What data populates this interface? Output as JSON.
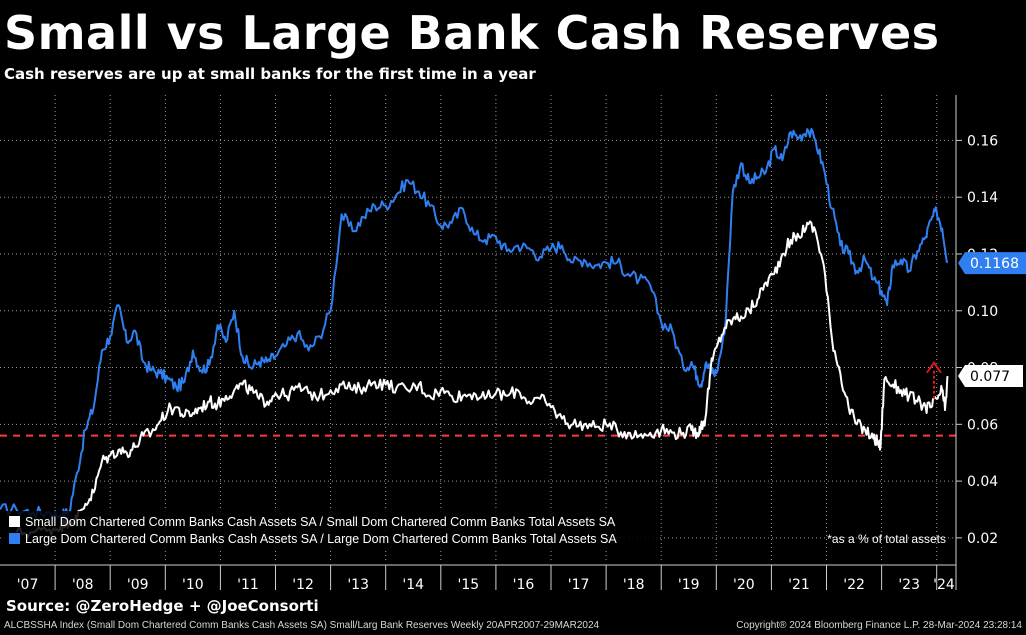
{
  "header": {
    "title": "Small vs Large Bank Cash Reserves",
    "subtitle": "Cash reserves are up at small banks for the first time in a year"
  },
  "chart_data": {
    "type": "line",
    "title": "Small vs Large Bank Cash Reserves",
    "subtitle": "Cash reserves are up at small banks for the first time in a year",
    "x_ticks": [
      "'07",
      "'08",
      "'09",
      "'10",
      "'11",
      "'12",
      "'13",
      "'14",
      "'15",
      "'16",
      "'17",
      "'18",
      "'19",
      "'20",
      "'21",
      "'22",
      "'23",
      "'24"
    ],
    "xlim": [
      2007.0,
      2024.35
    ],
    "y_ticks": [
      "0.02",
      "0.04",
      "0.06",
      "0.08",
      "0.10",
      "0.12",
      "0.14",
      "0.16"
    ],
    "ylim": [
      0.0115,
      0.176
    ],
    "grid": true,
    "legend_placement": "bottom-left",
    "note": "*as a % of total assets",
    "reference_line": {
      "value": 0.056,
      "color": "#ff3b3b",
      "style": "dashed"
    },
    "arrow_annotation": {
      "x": 2023.95,
      "y_from": 0.069,
      "y_to": 0.081,
      "color": "#d81b1b"
    },
    "series": [
      {
        "name": "Large Dom Chartered Comm Banks Cash Assets SA / Large Dom Chartered Comm Banks Total Assets SA",
        "color": "#2f7ff0",
        "last_value_label": "0.1168",
        "last_value": 0.1168,
        "x": [
          2007.0,
          2007.3,
          2007.6,
          2007.9,
          2008.1,
          2008.25,
          2008.4,
          2008.55,
          2008.7,
          2008.85,
          2009.0,
          2009.15,
          2009.3,
          2009.45,
          2009.6,
          2009.75,
          2009.9,
          2010.05,
          2010.2,
          2010.35,
          2010.5,
          2010.65,
          2010.8,
          2010.95,
          2011.1,
          2011.25,
          2011.4,
          2011.55,
          2011.7,
          2011.85,
          2012.0,
          2012.2,
          2012.4,
          2012.6,
          2012.8,
          2013.0,
          2013.2,
          2013.4,
          2013.6,
          2013.8,
          2014.0,
          2014.2,
          2014.4,
          2014.6,
          2014.8,
          2015.0,
          2015.2,
          2015.4,
          2015.6,
          2015.8,
          2016.0,
          2016.2,
          2016.4,
          2016.6,
          2016.8,
          2017.0,
          2017.2,
          2017.4,
          2017.6,
          2017.8,
          2018.0,
          2018.2,
          2018.4,
          2018.6,
          2018.8,
          2019.0,
          2019.2,
          2019.4,
          2019.55,
          2019.65,
          2019.72,
          2019.8,
          2019.9,
          2020.0,
          2020.15,
          2020.3,
          2020.45,
          2020.6,
          2020.75,
          2020.9,
          2021.05,
          2021.2,
          2021.35,
          2021.5,
          2021.65,
          2021.8,
          2021.95,
          2022.1,
          2022.25,
          2022.4,
          2022.55,
          2022.7,
          2022.85,
          2023.0,
          2023.1,
          2023.2,
          2023.35,
          2023.5,
          2023.65,
          2023.8,
          2023.9,
          2024.0,
          2024.1,
          2024.2
        ],
        "y": [
          0.03,
          0.03,
          0.029,
          0.029,
          0.028,
          0.029,
          0.043,
          0.058,
          0.066,
          0.086,
          0.091,
          0.102,
          0.089,
          0.093,
          0.082,
          0.079,
          0.078,
          0.076,
          0.073,
          0.075,
          0.086,
          0.079,
          0.081,
          0.095,
          0.089,
          0.1,
          0.084,
          0.08,
          0.082,
          0.082,
          0.084,
          0.088,
          0.092,
          0.086,
          0.091,
          0.1,
          0.134,
          0.128,
          0.133,
          0.137,
          0.137,
          0.141,
          0.146,
          0.142,
          0.137,
          0.13,
          0.131,
          0.136,
          0.127,
          0.125,
          0.126,
          0.121,
          0.123,
          0.122,
          0.119,
          0.122,
          0.123,
          0.117,
          0.118,
          0.116,
          0.117,
          0.117,
          0.113,
          0.111,
          0.109,
          0.096,
          0.093,
          0.08,
          0.082,
          0.077,
          0.074,
          0.081,
          0.079,
          0.078,
          0.092,
          0.142,
          0.152,
          0.145,
          0.147,
          0.149,
          0.157,
          0.153,
          0.163,
          0.161,
          0.164,
          0.16,
          0.15,
          0.136,
          0.123,
          0.12,
          0.114,
          0.118,
          0.111,
          0.107,
          0.102,
          0.116,
          0.118,
          0.114,
          0.121,
          0.126,
          0.132,
          0.135,
          0.129,
          0.117
        ]
      },
      {
        "name": "Small Dom Chartered Comm Banks Cash Assets SA / Small Dom Chartered Comm Banks Total Assets SA",
        "color": "#ffffff",
        "last_value_label": "0.077",
        "last_value": 0.077,
        "x": [
          2007.3,
          2007.6,
          2007.9,
          2008.1,
          2008.25,
          2008.4,
          2008.55,
          2008.7,
          2008.85,
          2009.0,
          2009.15,
          2009.3,
          2009.45,
          2009.6,
          2009.75,
          2009.9,
          2010.05,
          2010.2,
          2010.35,
          2010.5,
          2010.65,
          2010.8,
          2010.95,
          2011.1,
          2011.25,
          2011.4,
          2011.55,
          2011.7,
          2011.85,
          2012.0,
          2012.2,
          2012.4,
          2012.6,
          2012.8,
          2013.0,
          2013.2,
          2013.4,
          2013.6,
          2013.8,
          2014.0,
          2014.2,
          2014.4,
          2014.6,
          2014.8,
          2015.0,
          2015.2,
          2015.4,
          2015.6,
          2015.8,
          2016.0,
          2016.2,
          2016.4,
          2016.6,
          2016.8,
          2017.0,
          2017.2,
          2017.4,
          2017.6,
          2017.8,
          2018.0,
          2018.2,
          2018.4,
          2018.6,
          2018.8,
          2019.0,
          2019.2,
          2019.4,
          2019.55,
          2019.65,
          2019.72,
          2019.8,
          2019.9,
          2020.0,
          2020.15,
          2020.3,
          2020.45,
          2020.6,
          2020.75,
          2020.9,
          2021.05,
          2021.2,
          2021.35,
          2021.5,
          2021.65,
          2021.8,
          2021.95,
          2022.1,
          2022.25,
          2022.4,
          2022.55,
          2022.7,
          2022.85,
          2022.92,
          2022.98,
          2023.05,
          2023.2,
          2023.35,
          2023.5,
          2023.65,
          2023.8,
          2023.9,
          2024.0,
          2024.1,
          2024.15,
          2024.2
        ],
        "y": [
          0.022,
          0.022,
          0.023,
          0.024,
          0.026,
          0.027,
          0.032,
          0.036,
          0.047,
          0.049,
          0.051,
          0.05,
          0.052,
          0.056,
          0.057,
          0.061,
          0.065,
          0.066,
          0.063,
          0.064,
          0.066,
          0.068,
          0.067,
          0.07,
          0.072,
          0.074,
          0.072,
          0.069,
          0.068,
          0.071,
          0.07,
          0.073,
          0.071,
          0.07,
          0.072,
          0.074,
          0.072,
          0.073,
          0.075,
          0.074,
          0.073,
          0.072,
          0.074,
          0.07,
          0.072,
          0.07,
          0.07,
          0.071,
          0.069,
          0.071,
          0.07,
          0.072,
          0.068,
          0.069,
          0.066,
          0.062,
          0.06,
          0.06,
          0.059,
          0.06,
          0.058,
          0.057,
          0.056,
          0.057,
          0.058,
          0.057,
          0.057,
          0.058,
          0.057,
          0.059,
          0.062,
          0.08,
          0.087,
          0.094,
          0.097,
          0.098,
          0.1,
          0.104,
          0.11,
          0.113,
          0.12,
          0.125,
          0.126,
          0.131,
          0.128,
          0.116,
          0.09,
          0.078,
          0.066,
          0.06,
          0.058,
          0.055,
          0.054,
          0.052,
          0.076,
          0.074,
          0.072,
          0.07,
          0.068,
          0.066,
          0.066,
          0.069,
          0.072,
          0.065,
          0.077
        ]
      }
    ]
  },
  "footer": {
    "source": "Source: @ZeroHedge + @JoeConsorti",
    "ticker_info": "ALCBSSHA Index (Small Dom Chartered Comm Banks Cash Assets SA) Small/Larg Bank Reserves  Weekly 20APR2007-29MAR2024",
    "copyright": "Copyright® 2024 Bloomberg Finance L.P.     28-Mar-2024 23:28:14"
  }
}
